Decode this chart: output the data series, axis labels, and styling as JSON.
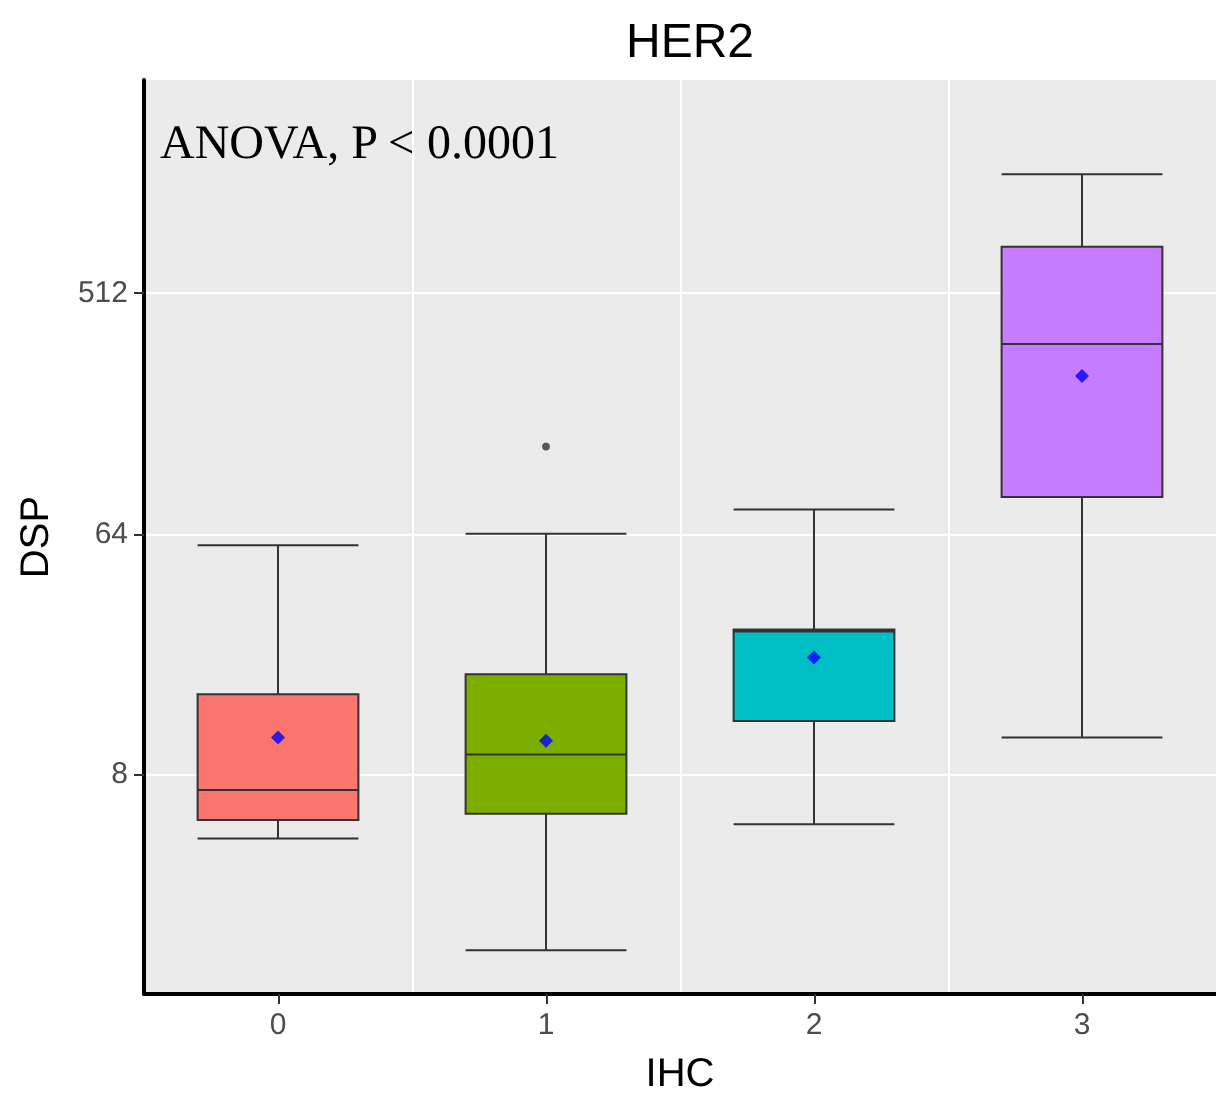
{
  "chart_data": {
    "type": "box",
    "title": "HER2",
    "xlabel": "IHC",
    "ylabel": "DSP",
    "annotations": [
      "ANOVA, P < 0.0001"
    ],
    "categories": [
      "0",
      "1",
      "2",
      "3"
    ],
    "colors": [
      "#f8766d",
      "#7cae00",
      "#00bfc4",
      "#c77cff"
    ],
    "boxes": [
      {
        "low": 4.6,
        "q1": 5.4,
        "median": 7,
        "q3": 16,
        "high": 58,
        "mean": 11
      },
      {
        "low": 1.75,
        "q1": 5.7,
        "median": 9.5,
        "q3": 19,
        "high": 64,
        "mean": 10.7,
        "outliers": [
          136
        ]
      },
      {
        "low": 5.2,
        "q1": 12.7,
        "median": 27.5,
        "q3": 28,
        "high": 79,
        "mean": 22
      },
      {
        "low": 11,
        "q1": 88,
        "median": 330,
        "q3": 765,
        "high": 1430,
        "mean": 250
      }
    ],
    "log": true,
    "ylim": [
      1.2,
      3230
    ],
    "yticks": [
      8,
      64,
      512
    ],
    "grid": true
  }
}
